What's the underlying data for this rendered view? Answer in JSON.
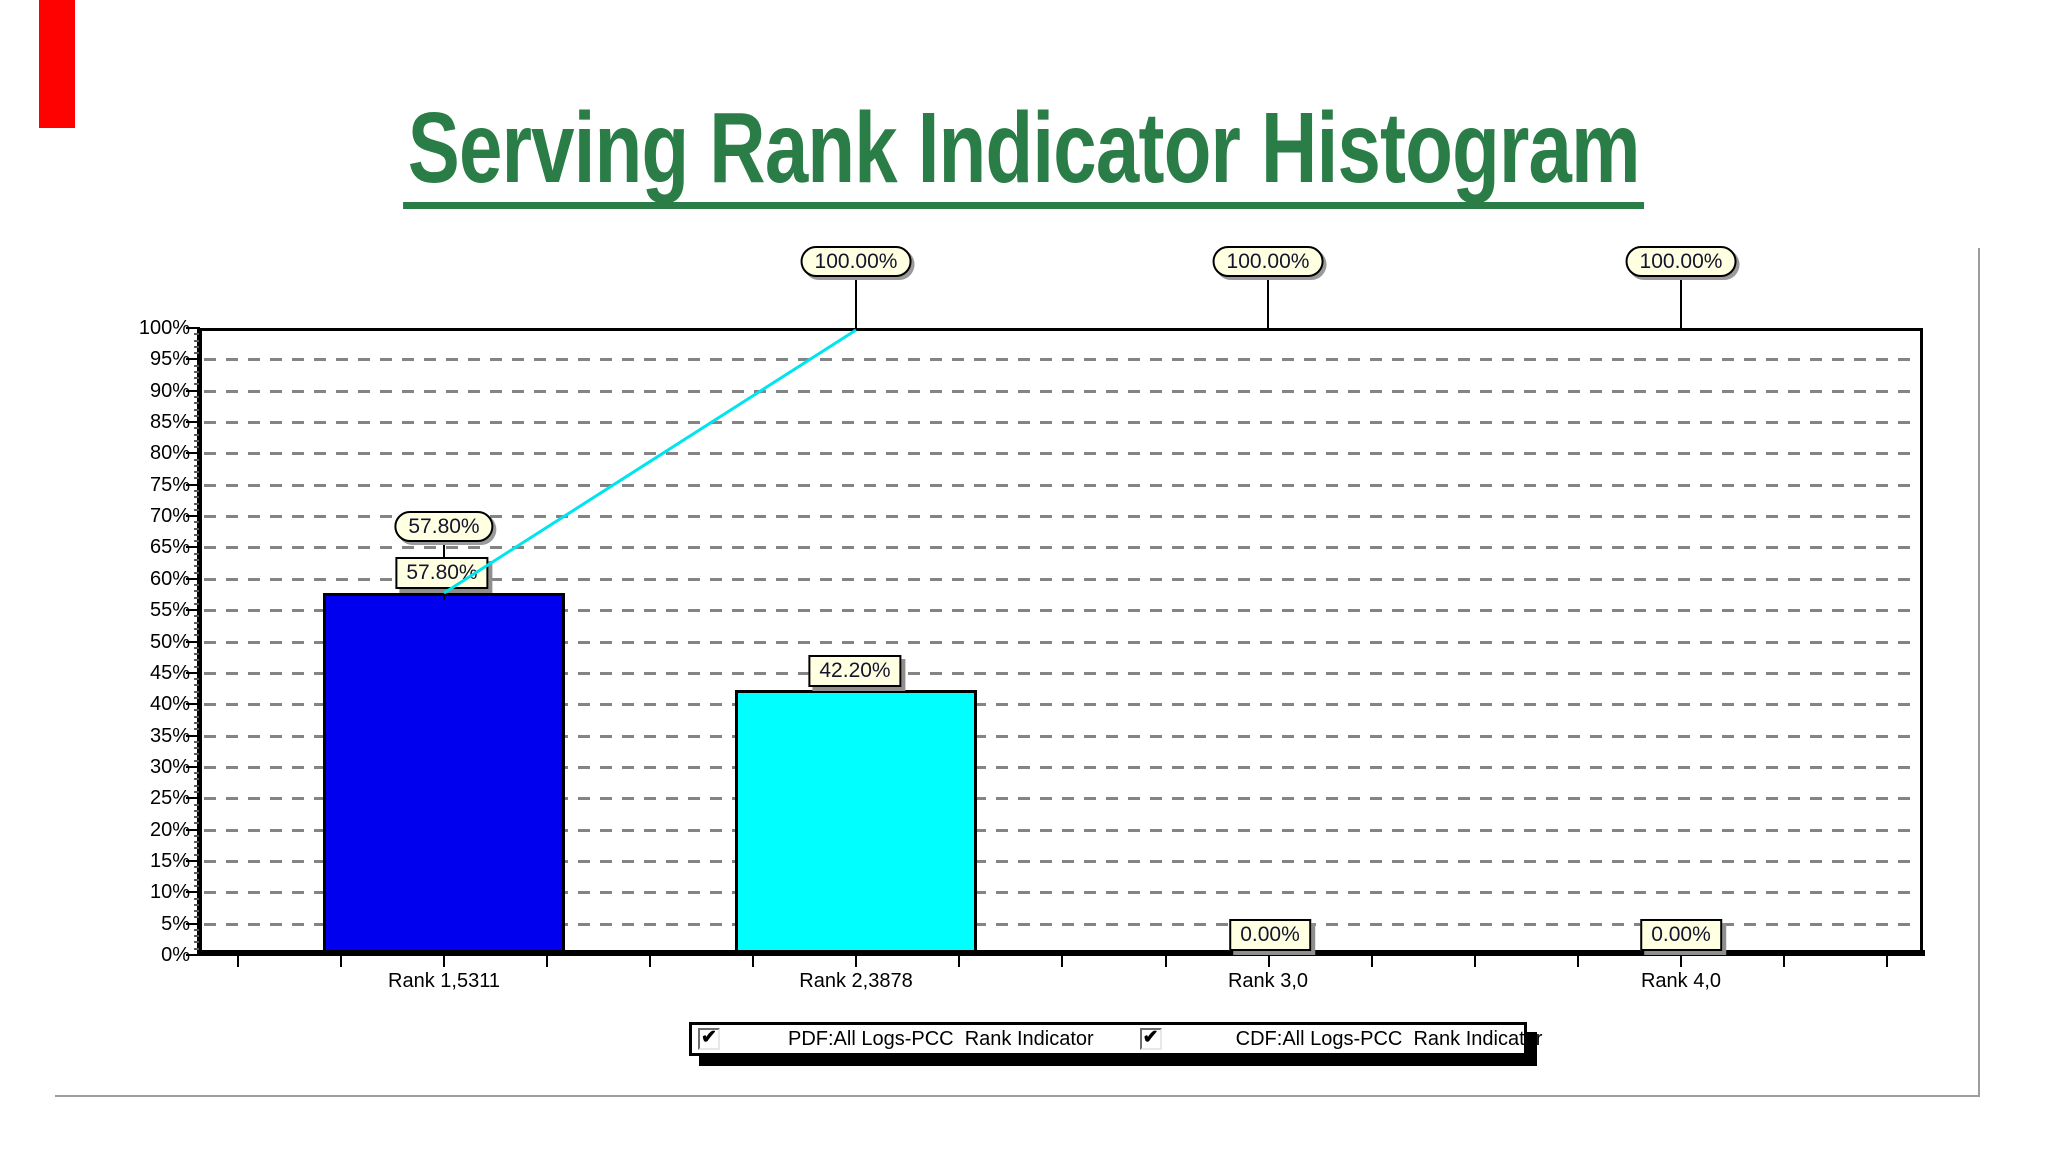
{
  "title": {
    "text": "Serving Rank Indicator Histogram"
  },
  "y_axis": {
    "labels": [
      "100%",
      "95%",
      "90%",
      "85%",
      "80%",
      "75%",
      "70%",
      "65%",
      "60%",
      "55%",
      "50%",
      "45%",
      "40%",
      "35%",
      "30%",
      "25%",
      "20%",
      "15%",
      "10%",
      "5%",
      "0%"
    ]
  },
  "x_axis": {
    "labels": [
      "Rank 1,5311",
      "Rank 2,3878",
      "Rank 3,0",
      "Rank 4,0"
    ]
  },
  "value_labels": {
    "pdf": [
      "57.80%",
      "42.20%",
      "0.00%",
      "0.00%"
    ],
    "cdf": [
      "57.80%",
      "100.00%",
      "100.00%",
      "100.00%"
    ]
  },
  "legend": {
    "items": [
      {
        "label": "PDF:All Logs-PCC  Rank Indicator",
        "checked": true
      },
      {
        "label": "CDF:All Logs-PCC  Rank Indicator",
        "checked": true
      }
    ]
  },
  "colors": {
    "title_green": "#2a7d46",
    "pdf_bar_rank1": "#0000ee",
    "pdf_bar_rank2": "#00ffff",
    "cdf_line": "#00e4ee",
    "label_background": "#ffffe1",
    "gridline": "#848484",
    "axis": "#000000",
    "panel_frame": "#9d9d9d",
    "red_marker": "#fe0202"
  },
  "chart_data": {
    "type": "bar",
    "categories": [
      "Rank 1,5311",
      "Rank 2,3878",
      "Rank 3,0",
      "Rank 4,0"
    ],
    "series": [
      {
        "name": "PDF:All Logs-PCC Rank Indicator",
        "type": "bar",
        "values": [
          57.8,
          42.2,
          0.0,
          0.0
        ],
        "bar_colors": [
          "#0000ee",
          "#00ffff",
          null,
          null
        ]
      },
      {
        "name": "CDF:All Logs-PCC Rank Indicator",
        "type": "line",
        "values": [
          57.8,
          100.0,
          100.0,
          100.0
        ],
        "color": "#00e4ee"
      }
    ],
    "title": "Serving Rank Indicator Histogram",
    "xlabel": "",
    "ylabel": "",
    "ylim": [
      0,
      100
    ],
    "ytick_step_percent": 5,
    "grid": "horizontal-dashed",
    "legend_position": "bottom"
  }
}
